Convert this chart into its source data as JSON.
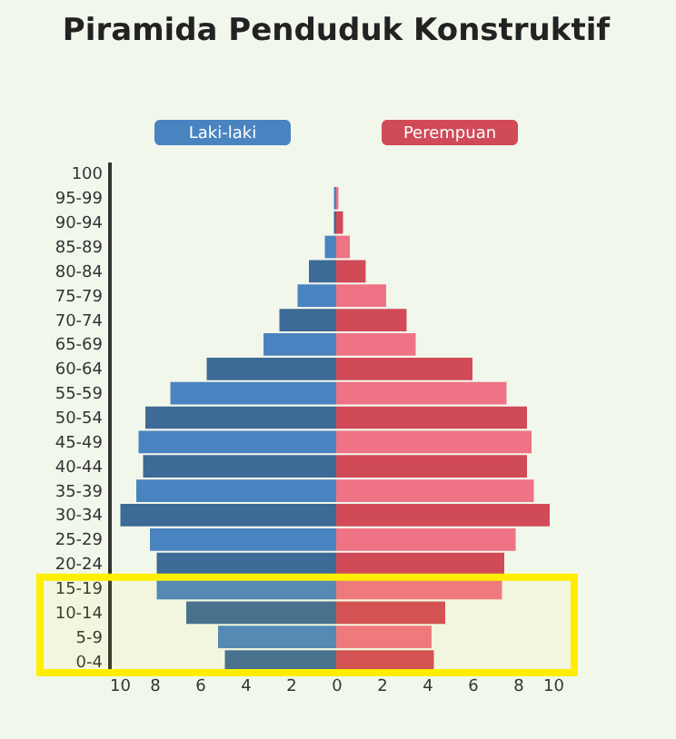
{
  "chart_data": {
    "type": "bar",
    "title": "Piramida Penduduk Konstruktif",
    "orientation": "horizontal",
    "stacked": true,
    "legend": "top",
    "grid": false,
    "categories": [
      "100",
      "95-99",
      "90-94",
      "85-89",
      "80-84",
      "75-79",
      "70-74",
      "65-69",
      "60-64",
      "55-59",
      "50-54",
      "45-49",
      "40-44",
      "35-39",
      "30-34",
      "25-29",
      "20-24",
      "15-19",
      "10-14",
      "5-9",
      "0-4"
    ],
    "xlim": [
      -10,
      10
    ],
    "xticks": [
      {
        "value": -10,
        "label": "10"
      },
      {
        "value": -8,
        "label": "8"
      },
      {
        "value": -6,
        "label": "6"
      },
      {
        "value": -4,
        "label": "4"
      },
      {
        "value": -2,
        "label": "2"
      },
      0,
      2,
      4,
      6,
      8,
      10
    ],
    "series": [
      {
        "name": "Laki-laki",
        "color": "#4a84c0",
        "colors": [
          "#3d6a96",
          "#4a84c0",
          "#3d6a96",
          "#4a84c0",
          "#3d6a96",
          "#4a84c0",
          "#3d6a96",
          "#4a84c0",
          "#3d6a96",
          "#4a84c0",
          "#3d6a96",
          "#4a84c0",
          "#3d6a96",
          "#4a84c0",
          "#3d6a96",
          "#4a84c0",
          "#3d6a96",
          "#4a84c0",
          "#3d6a96",
          "#4a84c0",
          "#3d6a96"
        ],
        "values": [
          0,
          -0.1,
          -0.1,
          -0.5,
          -1.2,
          -1.7,
          -2.5,
          -3.2,
          -5.7,
          -7.3,
          -8.4,
          -8.7,
          -8.5,
          -8.8,
          -9.5,
          -8.2,
          -7.9,
          -7.9,
          -6.6,
          -5.2,
          -4.9
        ]
      },
      {
        "name": "Perempuan",
        "color": "#d14a58",
        "colors": [
          "#d14a58",
          "#ee7384",
          "#d14a58",
          "#ee7384",
          "#d14a58",
          "#ee7384",
          "#d14a58",
          "#ee7384",
          "#d14a58",
          "#ee7384",
          "#d14a58",
          "#ee7384",
          "#d14a58",
          "#ee7384",
          "#d14a58",
          "#ee7384",
          "#d14a58",
          "#ee7384",
          "#d14a58",
          "#ee7384",
          "#d14a58"
        ],
        "values": [
          0,
          0.1,
          0.3,
          0.6,
          1.3,
          2.2,
          3.1,
          3.5,
          6.0,
          7.5,
          8.4,
          8.6,
          8.4,
          8.7,
          9.4,
          7.9,
          7.4,
          7.3,
          4.8,
          4.2,
          4.3
        ]
      }
    ],
    "bands": [
      {
        "axis": "y",
        "from": "15-19",
        "to": "0-4",
        "color": "#ffee00"
      }
    ]
  }
}
